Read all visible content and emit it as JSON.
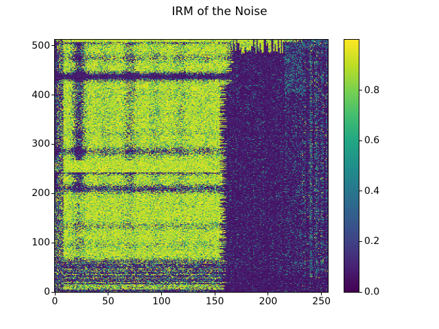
{
  "figure": {
    "title": "IRM of the Noise",
    "background": "#ffffff"
  },
  "chart_data": {
    "type": "heatmap",
    "title": "IRM of the Noise",
    "xlabel": "",
    "ylabel": "",
    "x_range": [
      0,
      256
    ],
    "y_range": [
      0,
      512
    ],
    "value_range": [
      0,
      1
    ],
    "x_ticks": [
      0,
      50,
      100,
      150,
      200,
      250
    ],
    "y_ticks": [
      0,
      100,
      200,
      300,
      400,
      500
    ],
    "colorbar": {
      "tick_values": [
        0.0,
        0.2,
        0.4,
        0.6,
        0.8
      ],
      "tick_labels": [
        "0.0",
        "0.2",
        "0.4",
        "0.6",
        "0.8"
      ],
      "position": "right"
    },
    "grid": false,
    "colormap": {
      "name": "viridis",
      "low_hex": "#440154",
      "high_hex": "#fde725",
      "stops": [
        [
          68,
          1,
          84
        ],
        [
          72,
          35,
          116
        ],
        [
          64,
          67,
          135
        ],
        [
          52,
          94,
          141
        ],
        [
          41,
          120,
          142
        ],
        [
          33,
          144,
          140
        ],
        [
          34,
          167,
          132
        ],
        [
          68,
          190,
          112
        ],
        [
          121,
          209,
          81
        ],
        [
          189,
          222,
          38
        ],
        [
          253,
          231,
          36
        ]
      ]
    },
    "regions_description": [
      "x 0-158: mask near 1 (yellow) with quasi-periodic dark vertical streaks (period ~24, strongest for y>215) and dark horizontal bands (period ~38)",
      "y 0-64 at x<158: mostly near 0 with speckled bright rows and a bright band at y 5-15",
      "y 243-267 at x<158: solid bright band near 1",
      "x 158-232: near-zero dark block with sparse mid-value speckle; thin dark vertical spikes reach the top edge around x 170-212",
      "x 232-256: sparse teal vertical noise streaks, values ~0.2-0.6",
      "top rows y>506 bright across the image"
    ],
    "generator": {
      "seed": 20240501,
      "nx": 256,
      "ny": 512,
      "streak_period": 24,
      "streak_sigma": 4,
      "band_period": 38,
      "band_sigma": 6,
      "left_edge": 8,
      "block_start": 157,
      "block_end": 232,
      "bright_band": [
        243,
        267
      ],
      "bottom_zone": 64,
      "top_bright": 506
    }
  }
}
